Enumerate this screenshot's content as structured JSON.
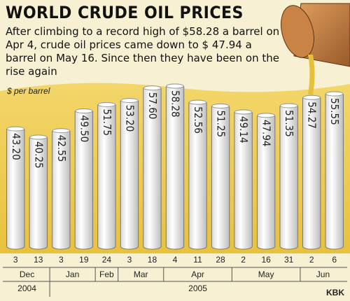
{
  "chart_data": {
    "type": "bar",
    "title": "WORLD CRUDE OIL PRICES",
    "subtitle": "After climbing to a record high of $58.28 a barrel on Apr 4, crude oil prices came down to $ 47.94 a barrel on May 16. Since then they have been on the rise again",
    "unit_label": "$ per barrel",
    "credit": "KBK",
    "categories": [
      "3",
      "13",
      "3",
      "19",
      "24",
      "3",
      "18",
      "4",
      "11",
      "28",
      "2",
      "16",
      "31",
      "2",
      "6"
    ],
    "months": [
      "Dec",
      null,
      "Jan",
      null,
      "Feb",
      "Mar",
      null,
      "Apr",
      null,
      null,
      "May",
      null,
      null,
      "Jun",
      null
    ],
    "years": [
      "2004",
      null,
      "2005",
      null,
      null,
      null,
      null,
      null,
      null,
      null,
      null,
      null,
      null,
      null,
      null
    ],
    "values": [
      43.2,
      40.25,
      42.55,
      49.5,
      51.75,
      53.2,
      57.6,
      58.28,
      52.56,
      51.25,
      49.14,
      47.94,
      51.35,
      54.27,
      55.55
    ],
    "value_labels": [
      "43.20",
      "40.25",
      "42.55",
      "49.50",
      "51.75",
      "53.20",
      "57.60",
      "58.28",
      "52.56",
      "51.25",
      "49.14",
      "47.94",
      "51.35",
      "54.27",
      "55.55"
    ],
    "color": "#ffffff"
  }
}
